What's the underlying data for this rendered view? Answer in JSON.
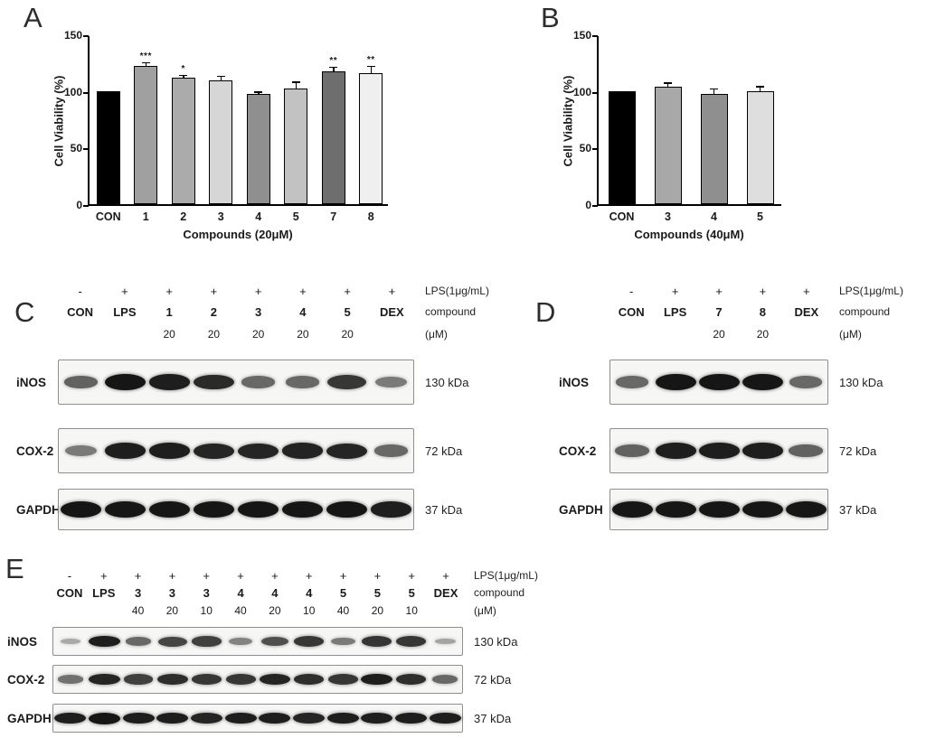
{
  "panel_letters": {
    "A": "A",
    "B": "B",
    "C": "C",
    "D": "D",
    "E": "E"
  },
  "chart_data": [
    {
      "type": "bar",
      "panel": "A",
      "title": "",
      "ylabel": "Cell Viability (%)",
      "xlabel": "Compounds (20μM)",
      "ylim": [
        0,
        150
      ],
      "yticks": [
        0,
        50,
        100,
        150
      ],
      "grid": false,
      "legend": "none",
      "categories": [
        "CON",
        "1",
        "2",
        "3",
        "4",
        "5",
        "7",
        "8"
      ],
      "values": [
        100,
        122,
        112,
        109,
        97,
        102,
        117,
        116
      ],
      "errors": [
        1,
        3,
        2,
        4,
        2,
        6,
        4,
        6
      ],
      "significance": [
        "",
        "***",
        "*",
        "",
        "",
        "",
        "**",
        "**"
      ],
      "bar_colors": [
        "#000000",
        "#a0a0a0",
        "#ababab",
        "#d6d6d6",
        "#8f8f8f",
        "#c2c2c2",
        "#6e6e6e",
        "#efefef"
      ]
    },
    {
      "type": "bar",
      "panel": "B",
      "title": "",
      "ylabel": "Cell Viability (%)",
      "xlabel": "Compounds (40μM)",
      "ylim": [
        0,
        150
      ],
      "yticks": [
        0,
        50,
        100,
        150
      ],
      "grid": false,
      "legend": "none",
      "categories": [
        "CON",
        "3",
        "4",
        "5"
      ],
      "values": [
        100,
        104,
        97,
        100
      ],
      "errors": [
        1,
        3,
        5,
        4
      ],
      "significance": [
        "",
        "",
        "",
        ""
      ],
      "bar_colors": [
        "#000000",
        "#a8a8a8",
        "#8f8f8f",
        "#dedede"
      ]
    }
  ],
  "blots": {
    "C": {
      "signs": [
        "-",
        "+",
        "+",
        "+",
        "+",
        "+",
        "+",
        "+"
      ],
      "lanes": [
        "CON",
        "LPS",
        "1",
        "2",
        "3",
        "4",
        "5",
        "DEX"
      ],
      "concs": [
        "",
        "",
        "20",
        "20",
        "20",
        "20",
        "20",
        ""
      ],
      "header_labels": [
        "LPS(1μg/mL)",
        "compound",
        "(μM)"
      ],
      "rows": [
        {
          "name": "iNOS",
          "kda": "130 kDa",
          "intensity": [
            0.55,
            1,
            0.95,
            0.88,
            0.5,
            0.5,
            0.8,
            0.4
          ]
        },
        {
          "name": "COX-2",
          "kda": "72 kDa",
          "intensity": [
            0.4,
            0.95,
            0.95,
            0.9,
            0.9,
            0.92,
            0.9,
            0.5
          ]
        },
        {
          "name": "GAPDH",
          "kda": "37 kDa",
          "intensity": [
            1,
            1,
            1,
            1,
            1,
            1,
            1,
            0.95
          ],
          "wmul": 1.15
        }
      ]
    },
    "D": {
      "signs": [
        "-",
        "+",
        "+",
        "+",
        "+"
      ],
      "lanes": [
        "CON",
        "LPS",
        "7",
        "8",
        "DEX"
      ],
      "concs": [
        "",
        "",
        "20",
        "20",
        ""
      ],
      "header_labels": [
        "LPS(1μg/mL)",
        "compound",
        "(μM)"
      ],
      "rows": [
        {
          "name": "iNOS",
          "kda": "130 kDa",
          "intensity": [
            0.5,
            1,
            1,
            1,
            0.5
          ]
        },
        {
          "name": "COX-2",
          "kda": "72 kDa",
          "intensity": [
            0.55,
            0.95,
            0.95,
            0.95,
            0.55
          ]
        },
        {
          "name": "GAPDH",
          "kda": "37 kDa",
          "intensity": [
            1,
            1,
            1,
            1,
            1
          ],
          "wmul": 1.15
        }
      ]
    },
    "E": {
      "signs": [
        "-",
        "+",
        "+",
        "+",
        "+",
        "+",
        "+",
        "+",
        "+",
        "+",
        "+",
        "+"
      ],
      "lanes": [
        "CON",
        "LPS",
        "3",
        "3",
        "3",
        "4",
        "4",
        "4",
        "5",
        "5",
        "5",
        "DEX"
      ],
      "concs": [
        "",
        "",
        "40",
        "20",
        "10",
        "40",
        "20",
        "10",
        "40",
        "20",
        "10",
        ""
      ],
      "header_labels": [
        "LPS(1μg/mL)",
        "compound",
        "(μM)"
      ],
      "rows": [
        {
          "name": "iNOS",
          "kda": "130 kDa",
          "intensity": [
            0.12,
            0.95,
            0.5,
            0.72,
            0.75,
            0.35,
            0.65,
            0.8,
            0.4,
            0.82,
            0.8,
            0.15
          ]
        },
        {
          "name": "COX-2",
          "kda": "72 kDa",
          "intensity": [
            0.45,
            0.9,
            0.75,
            0.85,
            0.8,
            0.8,
            0.9,
            0.85,
            0.8,
            0.95,
            0.85,
            0.5
          ]
        },
        {
          "name": "GAPDH",
          "kda": "37 kDa",
          "intensity": [
            0.95,
            1,
            0.95,
            0.95,
            0.9,
            0.95,
            0.95,
            0.9,
            0.95,
            0.95,
            0.95,
            0.95
          ],
          "wmul": 1.15
        }
      ]
    }
  }
}
